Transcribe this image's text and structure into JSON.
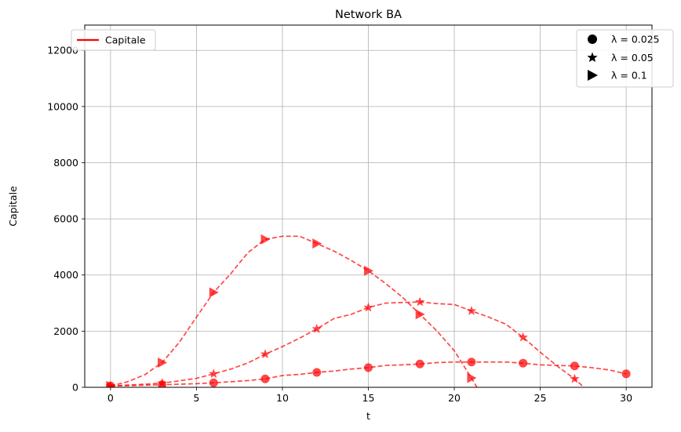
{
  "chart_data": {
    "type": "line",
    "title": "Network BA",
    "xlabel": "t",
    "ylabel": "Capitale",
    "xlim": [
      -1.5,
      31.5
    ],
    "ylim": [
      0,
      12900
    ],
    "xticks": [
      0,
      5,
      10,
      15,
      20,
      25,
      30
    ],
    "yticks": [
      0,
      2000,
      4000,
      6000,
      8000,
      10000,
      12000
    ],
    "grid": true,
    "color": "#ff0000",
    "legend_color": {
      "label": "Capitale",
      "placement": "top-left"
    },
    "legend_markers": {
      "placement": "top-right",
      "entries": [
        {
          "marker": "circle",
          "label": "λ = 0.025"
        },
        {
          "marker": "star",
          "label": "λ = 0.05"
        },
        {
          "marker": "triangle-right",
          "label": "λ = 0.1"
        }
      ]
    },
    "series": [
      {
        "marker": "circle",
        "x": [
          0,
          1,
          2,
          3,
          4,
          5,
          6,
          7,
          8,
          9,
          10,
          11,
          12,
          13,
          14,
          15,
          16,
          17,
          18,
          19,
          20,
          21,
          22,
          23,
          24,
          25,
          26,
          27,
          28,
          29,
          30
        ],
        "y": [
          50,
          60,
          75,
          90,
          110,
          130,
          160,
          200,
          240,
          300,
          420,
          460,
          530,
          580,
          650,
          700,
          780,
          800,
          830,
          880,
          900,
          900,
          900,
          900,
          860,
          800,
          780,
          760,
          700,
          620,
          480
        ],
        "marker_x": [
          0,
          3,
          6,
          9,
          12,
          15,
          18,
          21,
          24,
          27,
          30
        ],
        "marker_y": [
          50,
          90,
          160,
          300,
          530,
          700,
          830,
          900,
          860,
          760,
          480
        ]
      },
      {
        "marker": "star",
        "x": [
          0,
          1,
          2,
          3,
          4,
          5,
          6,
          7,
          8,
          9,
          10,
          11,
          12,
          13,
          14,
          15,
          16,
          17,
          18,
          19,
          20,
          21,
          22,
          23,
          24,
          25,
          26,
          27,
          28
        ],
        "y": [
          50,
          80,
          110,
          150,
          230,
          320,
          480,
          650,
          870,
          1180,
          1450,
          1750,
          2080,
          2450,
          2600,
          2840,
          3000,
          3020,
          3040,
          2980,
          2950,
          2720,
          2500,
          2250,
          1780,
          1250,
          750,
          300,
          -250
        ],
        "marker_x": [
          0,
          3,
          6,
          9,
          12,
          15,
          18,
          21,
          24,
          27
        ],
        "marker_y": [
          50,
          150,
          480,
          1180,
          2080,
          2840,
          3040,
          2720,
          1780,
          300
        ]
      },
      {
        "marker": "triangle-right",
        "x": [
          0,
          1,
          2,
          3,
          4,
          5,
          6,
          7,
          8,
          9,
          10,
          11,
          12,
          13,
          14,
          15,
          16,
          17,
          18,
          19,
          20,
          21,
          21.5
        ],
        "y": [
          50,
          200,
          450,
          880,
          1600,
          2500,
          3380,
          4050,
          4800,
          5270,
          5380,
          5380,
          5120,
          4850,
          4520,
          4150,
          3700,
          3200,
          2600,
          2000,
          1300,
          330,
          -200
        ],
        "marker_x": [
          0,
          3,
          6,
          9,
          12,
          15,
          18,
          21
        ],
        "marker_y": [
          50,
          880,
          3380,
          5270,
          5120,
          4150,
          2600,
          330
        ]
      }
    ]
  }
}
